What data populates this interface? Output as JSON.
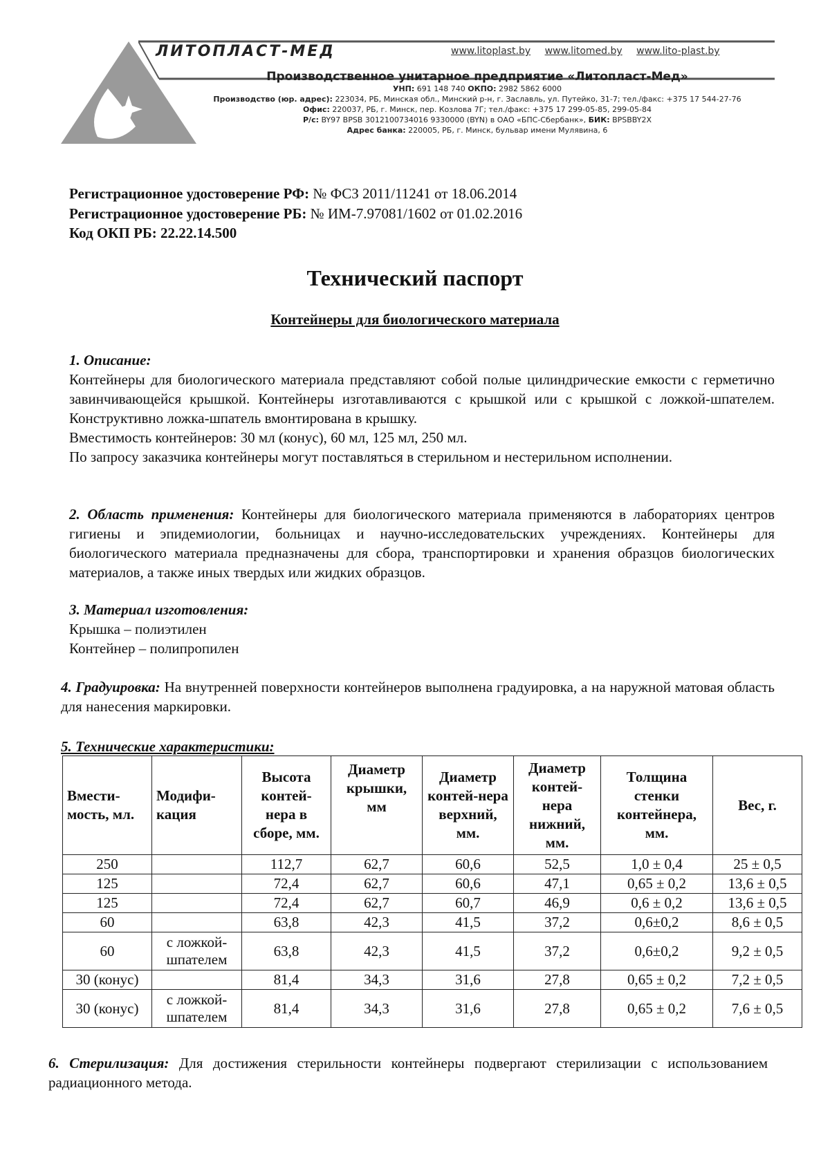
{
  "letterhead": {
    "brand": "ЛИТОПЛАСТ-МЕД",
    "websites": [
      "www.litoplast.by",
      "www.litomed.by",
      "www.lito-plast.by"
    ],
    "company": "Производственное унитарное предприятие «Литопласт-Мед»",
    "ids": {
      "unp_label": "УНП:",
      "unp": "691 148 740",
      "okpo_label": "ОКПО:",
      "okpo": "2982 5862 6000"
    },
    "production_label": "Производство (юр. адрес):",
    "production": "223034, РБ, Минская обл., Минский р-н, г. Заславль, ул. Путейко, 31-7; тел./факс: +375 17 544-27-76",
    "office_label": "Офис:",
    "office": "220037, РБ, г. Минск, пер. Козлова 7Г; тел./факс: +375 17 299-05-85, 299-05-84",
    "account_label": "Р/с:",
    "account": "BY97 BPSB 3012100734016 9330000 (BYN) в ОАО «БПС-Сбербанк»,",
    "bik_label": "БИК:",
    "bik": "BPSBBY2X",
    "bank_label": "Адрес банка:",
    "bank": "220005, РБ, г. Минск, бульвар имени Мулявина, 6"
  },
  "registration": {
    "rf_label": "Регистрационное удостоверение РФ:",
    "rf": "№ ФСЗ 2011/11241 от 18.06.2014",
    "rb_label": "Регистрационное удостоверение РБ:",
    "rb": "№ ИМ-7.97081/1602 от 01.02.2016",
    "okp_label": "Код ОКП РБ: 22.22.14.500"
  },
  "title": "Технический паспорт",
  "subtitle": "Контейнеры для биологического материала",
  "sections": [
    {
      "heading": "1. Описание:",
      "text": "Контейнеры для биологического материала представляют собой полые цилиндрические емкости с герметично завинчивающейся крышкой. Контейнеры изготавливаются с крышкой или с крышкой с ложкой-шпателем. Конструктивно ложка-шпатель вмонтирована в крышку.",
      "text2": "Вместимость контейнеров: 30 мл (конус), 60 мл, 125 мл, 250 мл.",
      "text3": "По запросу заказчика контейнеры могут поставляться в стерильном и нестерильном исполнении."
    },
    {
      "heading": "2. Область применения:",
      "text": "Контейнеры для биологического материала применяются в лабораториях центров гигиены и эпидемиологии, больницах и научно-исследовательских учреждениях. Контейнеры для биологического материала предназначены для сбора, транспортировки и хранения образцов биологических материалов, а также иных твердых или жидких образцов."
    },
    {
      "heading": "3. Материал изготовления:",
      "text": "Крышка – полиэтилен",
      "text2": "Контейнер – полипропилен"
    },
    {
      "heading": "4. Градуировка:",
      "text": "На внутренней поверхности контейнеров выполнена градуировка, а на наружной матовая область для нанесения маркировки."
    },
    {
      "heading": "5. Технические характеристики:"
    },
    {
      "heading": "6. Стерилизация:",
      "text": "Для достижения стерильности контейнеры подвергают стерилизации с использованием радиационного метода."
    }
  ],
  "table": {
    "headers": [
      "Вмести-мость, мл.",
      "Модифи-кация",
      "Высота контей-нера в сборе, мм.",
      "Диаметр крышки, мм",
      "Диаметр контей-нера верхний, мм.",
      "Диаметр контей-нера нижний, мм.",
      "Толщина стенки контейнера, мм.",
      "Вес, г."
    ],
    "rows": [
      [
        "250",
        "",
        "112,7",
        "62,7",
        "60,6",
        "52,5",
        "1,0 ± 0,4",
        "25 ± 0,5"
      ],
      [
        "125",
        "",
        "72,4",
        "62,7",
        "60,6",
        "47,1",
        "0,65 ± 0,2",
        "13,6 ± 0,5"
      ],
      [
        "125",
        "",
        "72,4",
        "62,7",
        "60,7",
        "46,9",
        "0,6 ± 0,2",
        "13,6 ± 0,5"
      ],
      [
        "60",
        "",
        "63,8",
        "42,3",
        "41,5",
        "37,2",
        "0,6±0,2",
        "8,6 ± 0,5"
      ],
      [
        "60",
        "с ложкой-шпателем",
        "63,8",
        "42,3",
        "41,5",
        "37,2",
        "0,6±0,2",
        "9,2 ± 0,5"
      ],
      [
        "30 (конус)",
        "",
        "81,4",
        "34,3",
        "31,6",
        "27,8",
        "0,65 ± 0,2",
        "7,2 ± 0,5"
      ],
      [
        "30 (конус)",
        "с ложкой-шпателем",
        "81,4",
        "34,3",
        "31,6",
        "27,8",
        "0,65 ± 0,2",
        "7,6 ± 0,5"
      ]
    ]
  }
}
